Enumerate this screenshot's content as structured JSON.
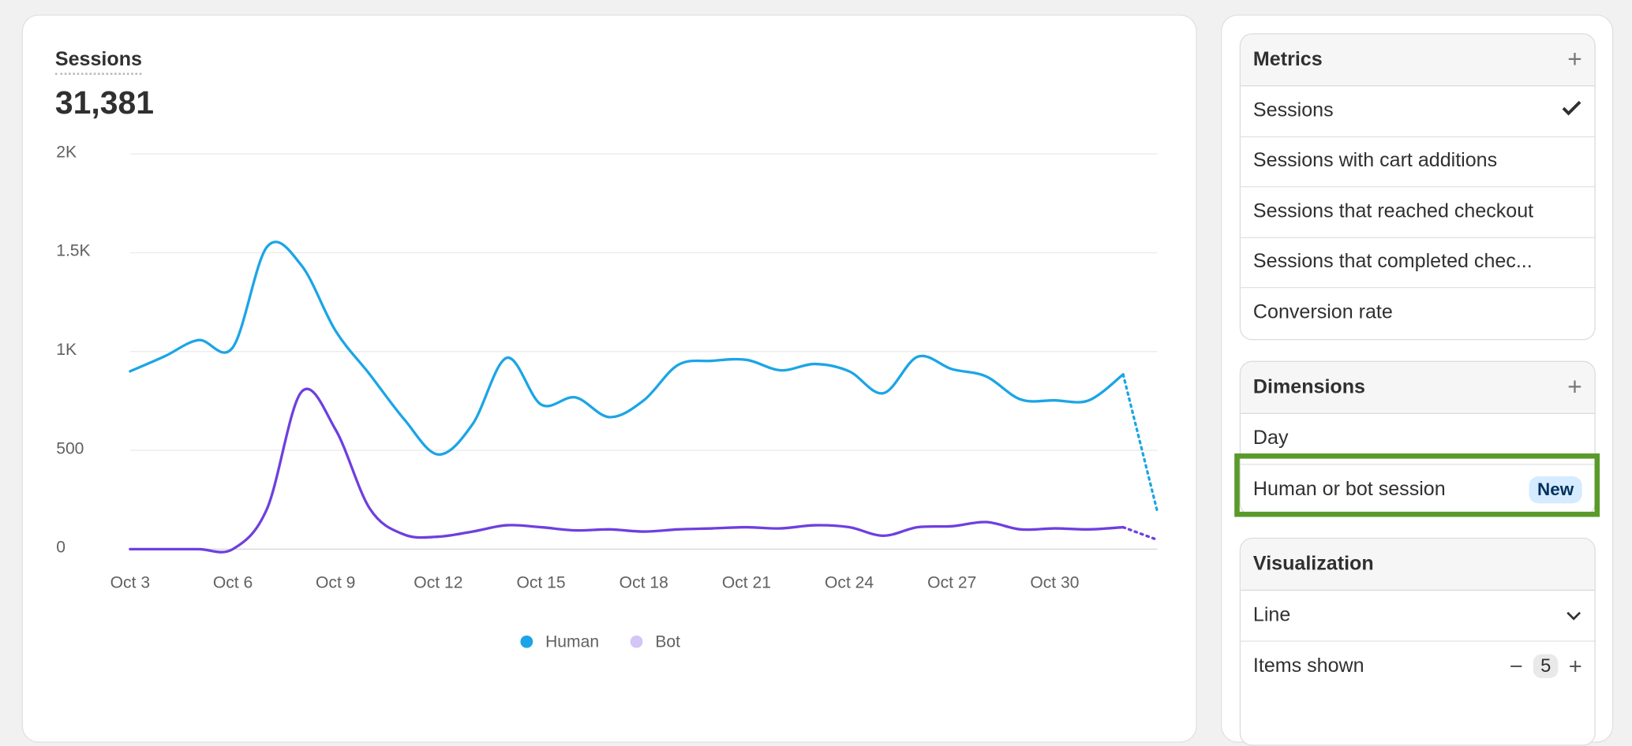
{
  "chart_data": {
    "type": "line",
    "title": "Sessions",
    "total": "31,381",
    "categories": [
      "Oct 3",
      null,
      null,
      "Oct 6",
      null,
      null,
      "Oct 9",
      null,
      null,
      "Oct 12",
      null,
      null,
      "Oct 15",
      null,
      null,
      "Oct 18",
      null,
      null,
      "Oct 21",
      null,
      null,
      "Oct 24",
      null,
      null,
      "Oct 27",
      null,
      null,
      "Oct 30",
      null,
      null,
      null
    ],
    "series": [
      {
        "name": "Human",
        "color": "#1ba5e6",
        "values": [
          900,
          975,
          1058,
          1021,
          1530,
          1437,
          1105,
          884,
          658,
          479,
          632,
          968,
          732,
          768,
          668,
          753,
          932,
          953,
          958,
          905,
          937,
          900,
          789,
          974,
          911,
          874,
          758,
          753,
          753,
          884,
          189
        ]
      },
      {
        "name": "Bot",
        "color": "#6e3fe0",
        "dimmed": true,
        "values": [
          0,
          0,
          0,
          0,
          205,
          795,
          605,
          205,
          74,
          63,
          89,
          121,
          111,
          95,
          100,
          89,
          100,
          105,
          111,
          105,
          121,
          111,
          68,
          111,
          116,
          137,
          100,
          105,
          100,
          111,
          47
        ]
      }
    ],
    "incomplete_last": true,
    "ylim": [
      0,
      2000
    ],
    "yticks": [
      0,
      500,
      {
        "value": 1000,
        "label": "1K"
      },
      {
        "value": 1500,
        "label": "1.5K"
      },
      {
        "value": 2000,
        "label": "2K"
      }
    ],
    "grid": true
  },
  "panel": {
    "metrics": {
      "title": "Metrics",
      "items": [
        "Sessions",
        "Sessions with cart additions",
        "Sessions that reached checkout",
        "Sessions that completed chec...",
        "Conversion rate"
      ]
    },
    "dimensions": {
      "title": "Dimensions",
      "items": [
        "Day",
        "Human or bot session"
      ],
      "badge": "New"
    },
    "visualization": {
      "title": "Visualization",
      "type": "Line",
      "items_label": "Items shown",
      "items_value": 5
    }
  }
}
